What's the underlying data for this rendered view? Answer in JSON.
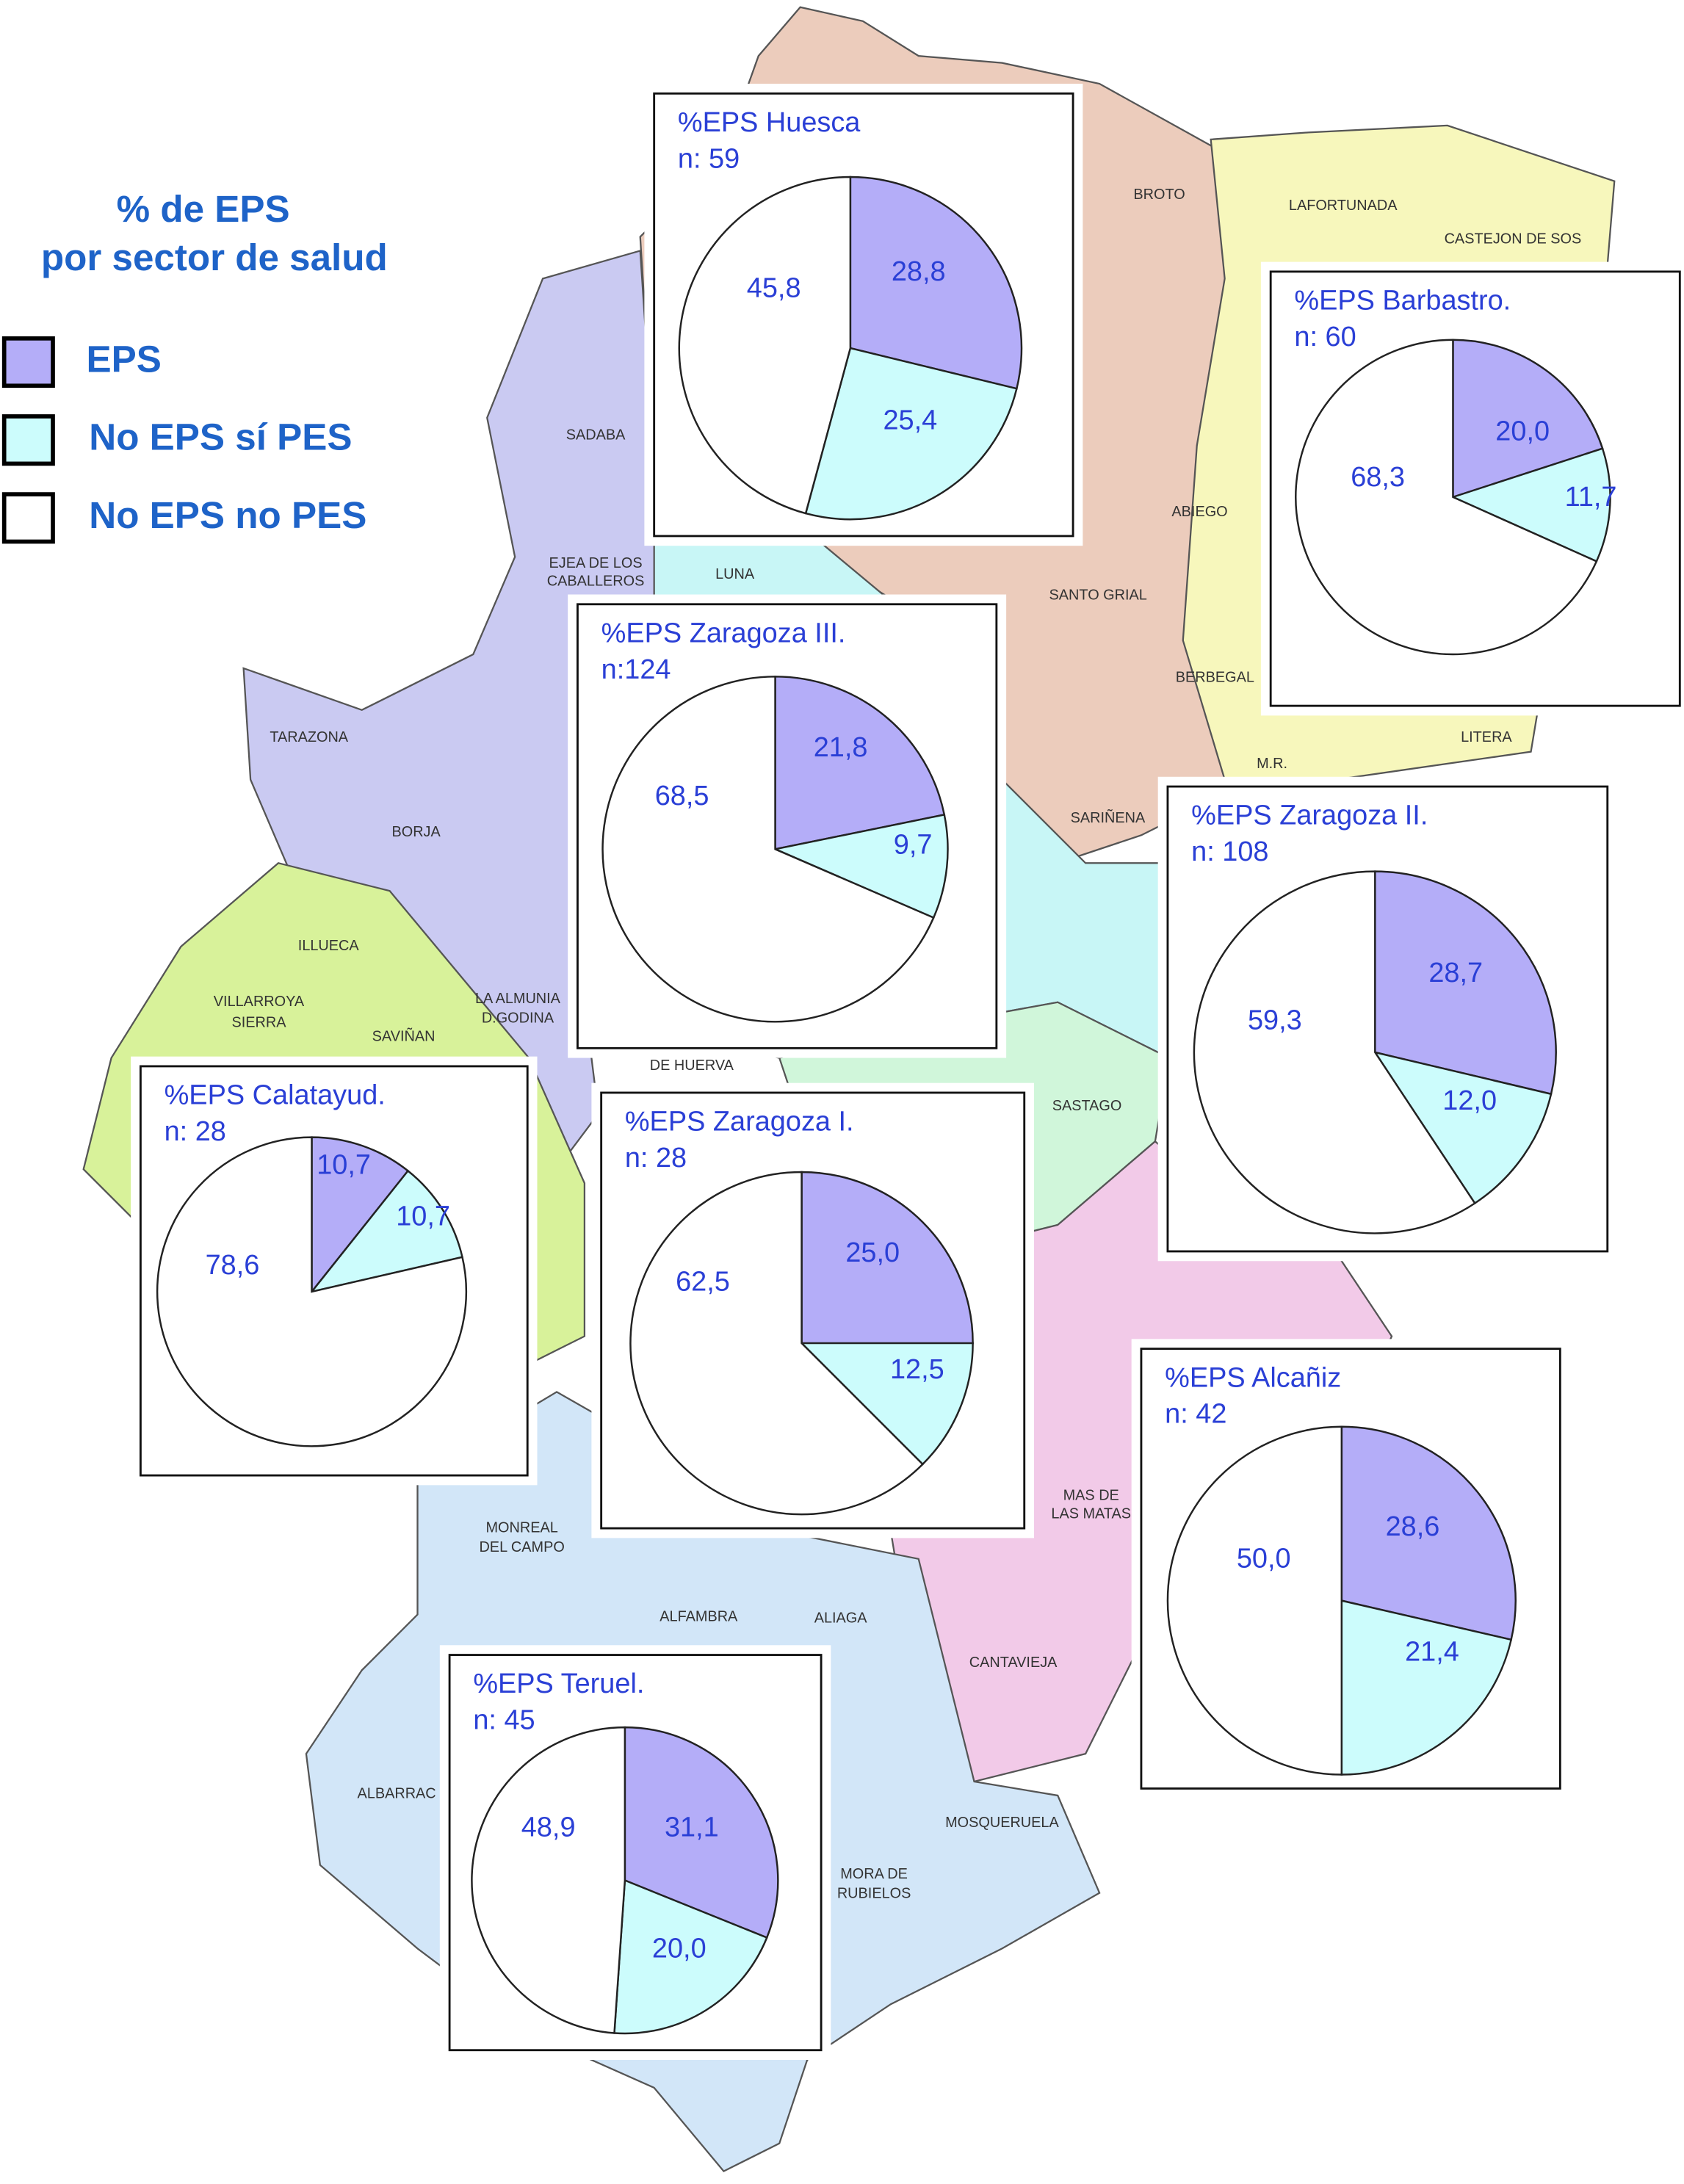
{
  "legend": {
    "title": [
      "% de EPS",
      "por sector de salud"
    ],
    "items": [
      {
        "label": "EPS",
        "color": "#b4adf8"
      },
      {
        "label": "No EPS sí PES",
        "color": "#ccfcfc"
      },
      {
        "label": "No EPS no PES",
        "color": "#ffffff"
      }
    ]
  },
  "map_labels": [
    "BROTO",
    "LAFORTUNADA",
    "CASTEJON DE SOS",
    "SADABA",
    "EJEA DE LOS",
    "CABALLEROS",
    "LUNA",
    "TARAZONA",
    "BORJA",
    "ILLUECA",
    "VILLARROYA",
    "SIERRA",
    "SAVIÑAN",
    "LA ALMUNIA",
    "D.GODINA",
    "ABIEGO",
    "SANTO GRIAL",
    "BERBEGAL",
    "M.R.",
    "LITERA",
    "SARIÑENA",
    "SASTAGO",
    "DE HUERVA",
    "MONREAL",
    "DEL CAMPO",
    "ALFAMBRA",
    "ALIAGA",
    "CANTAVIEJA",
    "MAS DE",
    "LAS MATAS",
    "MOSQUERUELA",
    "MORA DE",
    "RUBIELOS",
    "ALBARRAC"
  ],
  "chart_data": [
    {
      "type": "pie",
      "title": "%EPS Huesca",
      "subtitle": "n: 59",
      "values": [
        28.8,
        25.4,
        45.8
      ],
      "value_labels": [
        "28,8",
        "25,4",
        "45,8"
      ]
    },
    {
      "type": "pie",
      "title": "%EPS Barbastro.",
      "subtitle": "n: 60",
      "values": [
        20.0,
        11.7,
        68.3
      ],
      "value_labels": [
        "20,0",
        "11,7",
        "68,3"
      ]
    },
    {
      "type": "pie",
      "title": "%EPS Zaragoza III.",
      "subtitle": "n:124",
      "values": [
        21.8,
        9.7,
        68.5
      ],
      "value_labels": [
        "21,8",
        "9,7",
        "68,5"
      ]
    },
    {
      "type": "pie",
      "title": "%EPS Zaragoza II.",
      "subtitle": "n: 108",
      "values": [
        28.7,
        12.0,
        59.3
      ],
      "value_labels": [
        "28,7",
        "12,0",
        "59,3"
      ]
    },
    {
      "type": "pie",
      "title": "%EPS Calatayud.",
      "subtitle": "n: 28",
      "values": [
        10.7,
        10.7,
        78.6
      ],
      "value_labels": [
        "10,7",
        "10,7",
        "78,6"
      ]
    },
    {
      "type": "pie",
      "title": "%EPS Zaragoza I.",
      "subtitle": "n: 28",
      "values": [
        25.0,
        12.5,
        62.5
      ],
      "value_labels": [
        "25,0",
        "12,5",
        "62,5"
      ]
    },
    {
      "type": "pie",
      "title": "%EPS Alcañiz",
      "subtitle": "n: 42",
      "values": [
        28.6,
        21.4,
        50.0
      ],
      "value_labels": [
        "28,6",
        "21,4",
        "50,0"
      ]
    },
    {
      "type": "pie",
      "title": "%EPS Teruel.",
      "subtitle": "n: 45",
      "values": [
        31.1,
        20.0,
        48.9
      ],
      "value_labels": [
        "31,1",
        "20,0",
        "48,9"
      ]
    }
  ]
}
